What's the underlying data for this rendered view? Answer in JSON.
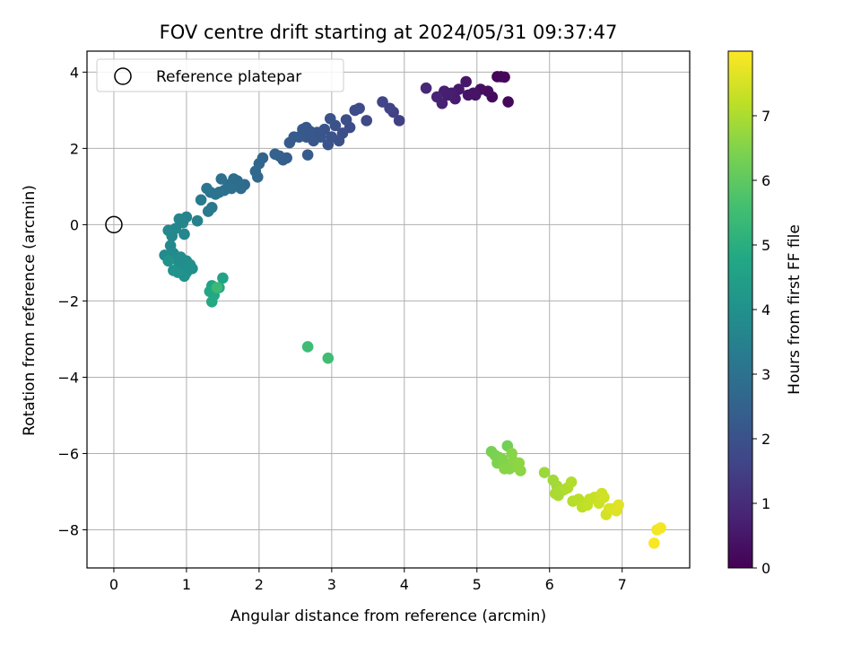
{
  "chart_data": {
    "type": "scatter",
    "title": "FOV centre drift starting at 2024/05/31 09:37:47",
    "xlabel": "Angular distance from reference (arcmin)",
    "ylabel": "Rotation from reference (arcmin)",
    "xlim": [
      -0.37,
      7.93
    ],
    "ylim": [
      -9.0,
      4.55
    ],
    "xticks": [
      0,
      1,
      2,
      3,
      4,
      5,
      6,
      7
    ],
    "yticks": [
      -8,
      -6,
      -4,
      -2,
      0,
      2,
      4
    ],
    "grid": true,
    "legend": {
      "position": "top-left",
      "entries": [
        "Reference platepar"
      ]
    },
    "reference_point": {
      "x": 0,
      "y": 0,
      "name": "Reference platepar"
    },
    "colorbar": {
      "label": "Hours from first FF file",
      "range": [
        0,
        8.0
      ],
      "ticks": [
        0,
        1,
        2,
        3,
        4,
        5,
        6,
        7
      ],
      "colormap": "viridis"
    },
    "points": [
      {
        "x": 5.28,
        "y": 3.88,
        "h": 0.1
      },
      {
        "x": 5.33,
        "y": 3.88,
        "h": 0.12
      },
      {
        "x": 5.38,
        "y": 3.87,
        "h": 0.14
      },
      {
        "x": 5.43,
        "y": 3.22,
        "h": 0.18
      },
      {
        "x": 5.21,
        "y": 3.35,
        "h": 0.25
      },
      {
        "x": 5.15,
        "y": 3.5,
        "h": 0.3
      },
      {
        "x": 5.05,
        "y": 3.55,
        "h": 0.35
      },
      {
        "x": 4.95,
        "y": 3.45,
        "h": 0.4
      },
      {
        "x": 4.88,
        "y": 3.4,
        "h": 0.45
      },
      {
        "x": 4.85,
        "y": 3.75,
        "h": 0.5
      },
      {
        "x": 4.75,
        "y": 3.55,
        "h": 0.55
      },
      {
        "x": 4.7,
        "y": 3.3,
        "h": 0.6
      },
      {
        "x": 4.65,
        "y": 3.45,
        "h": 0.65
      },
      {
        "x": 4.55,
        "y": 3.5,
        "h": 0.7
      },
      {
        "x": 4.52,
        "y": 3.18,
        "h": 0.75
      },
      {
        "x": 4.45,
        "y": 3.35,
        "h": 0.8
      },
      {
        "x": 4.3,
        "y": 3.58,
        "h": 0.9
      },
      {
        "x": 4.98,
        "y": 3.4,
        "h": 0.42
      },
      {
        "x": 4.6,
        "y": 3.4,
        "h": 0.68
      },
      {
        "x": 3.93,
        "y": 2.73,
        "h": 1.5
      },
      {
        "x": 3.85,
        "y": 2.95,
        "h": 1.55
      },
      {
        "x": 3.8,
        "y": 3.05,
        "h": 1.6
      },
      {
        "x": 3.7,
        "y": 3.22,
        "h": 1.65
      },
      {
        "x": 3.48,
        "y": 2.73,
        "h": 1.75
      },
      {
        "x": 3.38,
        "y": 3.05,
        "h": 1.8
      },
      {
        "x": 3.32,
        "y": 3.0,
        "h": 1.83
      },
      {
        "x": 3.25,
        "y": 2.55,
        "h": 1.87
      },
      {
        "x": 3.2,
        "y": 2.75,
        "h": 1.9
      },
      {
        "x": 3.15,
        "y": 2.4,
        "h": 1.93
      },
      {
        "x": 3.1,
        "y": 2.2,
        "h": 1.96
      },
      {
        "x": 3.05,
        "y": 2.6,
        "h": 1.98
      },
      {
        "x": 3.0,
        "y": 2.3,
        "h": 2.0
      },
      {
        "x": 2.98,
        "y": 2.78,
        "h": 2.02
      },
      {
        "x": 2.95,
        "y": 2.1,
        "h": 2.05
      },
      {
        "x": 2.9,
        "y": 2.5,
        "h": 2.08
      },
      {
        "x": 2.85,
        "y": 2.3,
        "h": 2.1
      },
      {
        "x": 2.8,
        "y": 2.42,
        "h": 2.12
      },
      {
        "x": 2.75,
        "y": 2.2,
        "h": 2.15
      },
      {
        "x": 2.7,
        "y": 2.45,
        "h": 2.18
      },
      {
        "x": 2.65,
        "y": 2.3,
        "h": 2.2
      },
      {
        "x": 2.6,
        "y": 2.5,
        "h": 2.22
      },
      {
        "x": 2.55,
        "y": 2.3,
        "h": 2.25
      },
      {
        "x": 2.48,
        "y": 2.3,
        "h": 2.28
      },
      {
        "x": 2.42,
        "y": 2.15,
        "h": 2.32
      },
      {
        "x": 2.38,
        "y": 1.75,
        "h": 2.35
      },
      {
        "x": 2.33,
        "y": 1.7,
        "h": 2.38
      },
      {
        "x": 2.28,
        "y": 1.8,
        "h": 2.42
      },
      {
        "x": 2.22,
        "y": 1.85,
        "h": 2.45
      },
      {
        "x": 2.65,
        "y": 2.55,
        "h": 2.2
      },
      {
        "x": 2.67,
        "y": 1.83,
        "h": 2.3
      },
      {
        "x": 2.05,
        "y": 1.75,
        "h": 2.6
      },
      {
        "x": 2.0,
        "y": 1.6,
        "h": 2.65
      },
      {
        "x": 1.98,
        "y": 1.25,
        "h": 2.7
      },
      {
        "x": 1.95,
        "y": 1.4,
        "h": 2.72
      },
      {
        "x": 1.8,
        "y": 1.05,
        "h": 2.78
      },
      {
        "x": 1.75,
        "y": 0.95,
        "h": 2.82
      },
      {
        "x": 1.7,
        "y": 1.15,
        "h": 2.85
      },
      {
        "x": 1.65,
        "y": 1.05,
        "h": 2.88
      },
      {
        "x": 1.62,
        "y": 0.95,
        "h": 2.9
      },
      {
        "x": 1.58,
        "y": 1.05,
        "h": 2.92
      },
      {
        "x": 1.52,
        "y": 0.9,
        "h": 2.95
      },
      {
        "x": 1.48,
        "y": 1.2,
        "h": 2.98
      },
      {
        "x": 1.45,
        "y": 0.85,
        "h": 3.0
      },
      {
        "x": 1.4,
        "y": 0.8,
        "h": 3.05
      },
      {
        "x": 1.33,
        "y": 0.85,
        "h": 3.08
      },
      {
        "x": 1.28,
        "y": 0.95,
        "h": 3.12
      },
      {
        "x": 1.35,
        "y": 0.45,
        "h": 3.18
      },
      {
        "x": 1.3,
        "y": 0.35,
        "h": 3.22
      },
      {
        "x": 1.2,
        "y": 0.65,
        "h": 3.28
      },
      {
        "x": 1.15,
        "y": 0.1,
        "h": 3.5
      },
      {
        "x": 1.65,
        "y": 1.2,
        "h": 2.86
      },
      {
        "x": 1.0,
        "y": 0.2,
        "h": 3.55
      },
      {
        "x": 0.95,
        "y": 0.05,
        "h": 3.6
      },
      {
        "x": 0.9,
        "y": 0.15,
        "h": 3.62
      },
      {
        "x": 0.97,
        "y": -0.25,
        "h": 3.65
      },
      {
        "x": 0.85,
        "y": -0.1,
        "h": 3.68
      },
      {
        "x": 0.8,
        "y": -0.3,
        "h": 3.7
      },
      {
        "x": 0.75,
        "y": -0.15,
        "h": 3.72
      },
      {
        "x": 0.78,
        "y": -0.55,
        "h": 3.75
      },
      {
        "x": 0.82,
        "y": -0.75,
        "h": 3.78
      },
      {
        "x": 0.7,
        "y": -0.8,
        "h": 3.8
      },
      {
        "x": 0.85,
        "y": -0.9,
        "h": 3.83
      },
      {
        "x": 0.9,
        "y": -1.1,
        "h": 3.86
      },
      {
        "x": 0.95,
        "y": -1.0,
        "h": 3.88
      },
      {
        "x": 1.0,
        "y": -0.95,
        "h": 3.9
      },
      {
        "x": 1.05,
        "y": -1.05,
        "h": 3.93
      },
      {
        "x": 1.08,
        "y": -1.15,
        "h": 3.96
      },
      {
        "x": 1.0,
        "y": -1.25,
        "h": 3.98
      },
      {
        "x": 0.97,
        "y": -1.35,
        "h": 4.0
      },
      {
        "x": 0.88,
        "y": -1.25,
        "h": 4.02
      },
      {
        "x": 0.82,
        "y": -1.2,
        "h": 4.04
      },
      {
        "x": 0.75,
        "y": -0.95,
        "h": 4.06
      },
      {
        "x": 0.92,
        "y": -0.85,
        "h": 3.84
      },
      {
        "x": 1.5,
        "y": -1.4,
        "h": 4.6
      },
      {
        "x": 1.35,
        "y": -1.6,
        "h": 4.65
      },
      {
        "x": 1.45,
        "y": -1.65,
        "h": 4.7
      },
      {
        "x": 1.32,
        "y": -1.75,
        "h": 4.75
      },
      {
        "x": 1.38,
        "y": -1.85,
        "h": 4.8
      },
      {
        "x": 1.35,
        "y": -2.02,
        "h": 4.85
      },
      {
        "x": 1.42,
        "y": -1.65,
        "h": 5.4
      },
      {
        "x": 2.67,
        "y": -3.2,
        "h": 5.45
      },
      {
        "x": 2.95,
        "y": -3.5,
        "h": 5.5
      },
      {
        "x": 5.42,
        "y": -5.8,
        "h": 6.3
      },
      {
        "x": 5.2,
        "y": -5.95,
        "h": 6.35
      },
      {
        "x": 5.25,
        "y": -6.05,
        "h": 6.4
      },
      {
        "x": 5.3,
        "y": -6.1,
        "h": 6.42
      },
      {
        "x": 5.28,
        "y": -6.25,
        "h": 6.45
      },
      {
        "x": 5.35,
        "y": -6.15,
        "h": 6.48
      },
      {
        "x": 5.4,
        "y": -6.3,
        "h": 6.5
      },
      {
        "x": 5.45,
        "y": -6.4,
        "h": 6.52
      },
      {
        "x": 5.38,
        "y": -6.4,
        "h": 6.55
      },
      {
        "x": 5.5,
        "y": -6.2,
        "h": 6.58
      },
      {
        "x": 5.55,
        "y": -6.35,
        "h": 6.6
      },
      {
        "x": 5.6,
        "y": -6.45,
        "h": 6.62
      },
      {
        "x": 5.58,
        "y": -6.25,
        "h": 6.64
      },
      {
        "x": 5.48,
        "y": -6.0,
        "h": 6.56
      },
      {
        "x": 5.93,
        "y": -6.5,
        "h": 6.8
      },
      {
        "x": 6.05,
        "y": -6.7,
        "h": 6.85
      },
      {
        "x": 6.1,
        "y": -6.85,
        "h": 6.9
      },
      {
        "x": 6.08,
        "y": -7.05,
        "h": 6.95
      },
      {
        "x": 6.15,
        "y": -7.0,
        "h": 7.0
      },
      {
        "x": 6.2,
        "y": -6.95,
        "h": 7.02
      },
      {
        "x": 6.25,
        "y": -6.9,
        "h": 7.05
      },
      {
        "x": 6.3,
        "y": -6.75,
        "h": 7.08
      },
      {
        "x": 6.32,
        "y": -7.25,
        "h": 7.1
      },
      {
        "x": 6.4,
        "y": -7.2,
        "h": 7.15
      },
      {
        "x": 6.45,
        "y": -7.4,
        "h": 7.2
      },
      {
        "x": 6.52,
        "y": -7.35,
        "h": 7.25
      },
      {
        "x": 6.55,
        "y": -7.2,
        "h": 7.28
      },
      {
        "x": 6.62,
        "y": -7.15,
        "h": 7.32
      },
      {
        "x": 6.68,
        "y": -7.3,
        "h": 7.36
      },
      {
        "x": 6.72,
        "y": -7.05,
        "h": 7.4
      },
      {
        "x": 6.75,
        "y": -7.15,
        "h": 7.44
      },
      {
        "x": 6.78,
        "y": -7.6,
        "h": 7.48
      },
      {
        "x": 6.82,
        "y": -7.45,
        "h": 7.52
      },
      {
        "x": 6.87,
        "y": -7.45,
        "h": 7.56
      },
      {
        "x": 6.92,
        "y": -7.5,
        "h": 7.6
      },
      {
        "x": 6.95,
        "y": -7.35,
        "h": 7.64
      },
      {
        "x": 6.12,
        "y": -7.1,
        "h": 6.98
      },
      {
        "x": 7.48,
        "y": -8.0,
        "h": 7.85
      },
      {
        "x": 7.53,
        "y": -7.95,
        "h": 7.9
      },
      {
        "x": 7.44,
        "y": -8.35,
        "h": 7.95
      }
    ]
  }
}
